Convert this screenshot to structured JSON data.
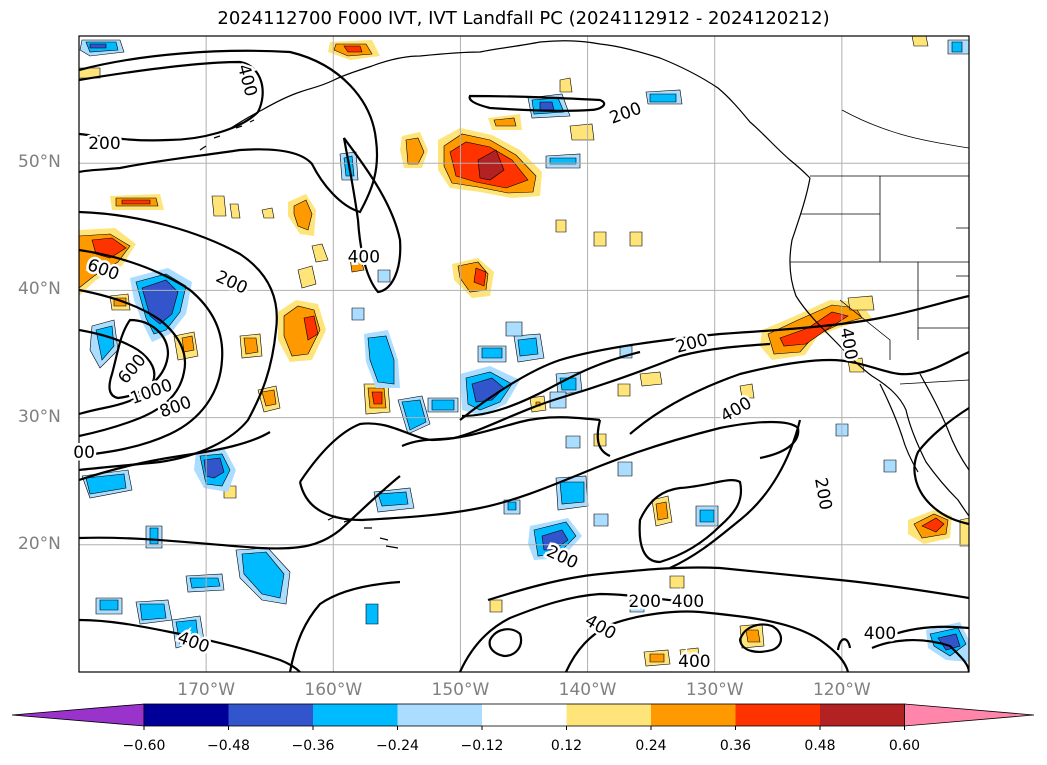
{
  "title": "2024112700 F000 IVT, IVT Landfall PC (2024112912 - 2024120212)",
  "map": {
    "lon_range": [
      -180,
      -110
    ],
    "lat_range": [
      10,
      60
    ],
    "lat_ticks": [
      {
        "value": 50,
        "label": "50°N"
      },
      {
        "value": 40,
        "label": "40°N"
      },
      {
        "value": 30,
        "label": "30°N"
      },
      {
        "value": 20,
        "label": "20°N"
      }
    ],
    "lon_ticks": [
      {
        "value": -170,
        "label": "170°W"
      },
      {
        "value": -160,
        "label": "160°W"
      },
      {
        "value": -150,
        "label": "150°W"
      },
      {
        "value": -140,
        "label": "140°W"
      },
      {
        "value": -130,
        "label": "130°W"
      },
      {
        "value": -120,
        "label": "120°W"
      }
    ],
    "grid": true,
    "contour_labels": [
      {
        "text": "400",
        "lon": -166.8,
        "lat": 56.5,
        "rot": 75
      },
      {
        "text": "200",
        "lon": -178.0,
        "lat": 51.5,
        "rot": 0
      },
      {
        "text": "200",
        "lon": -137.0,
        "lat": 53.9,
        "rot": -20
      },
      {
        "text": "400",
        "lon": -157.6,
        "lat": 42.6,
        "rot": 0
      },
      {
        "text": "600",
        "lon": -178.1,
        "lat": 41.6,
        "rot": 20
      },
      {
        "text": "200",
        "lon": -168.0,
        "lat": 40.6,
        "rot": 25
      },
      {
        "text": "600",
        "lon": -175.8,
        "lat": 33.8,
        "rot": -50
      },
      {
        "text": "1000",
        "lon": -174.3,
        "lat": 32.0,
        "rot": -20
      },
      {
        "text": "800",
        "lon": -172.4,
        "lat": 30.8,
        "rot": -20
      },
      {
        "text": "200",
        "lon": -131.8,
        "lat": 35.8,
        "rot": -15
      },
      {
        "text": "400",
        "lon": -128.3,
        "lat": 30.6,
        "rot": -30
      },
      {
        "text": "400",
        "lon": -119.5,
        "lat": 35.8,
        "rot": 80
      },
      {
        "text": "00",
        "lon": -179.6,
        "lat": 27.2,
        "rot": 0
      },
      {
        "text": "200",
        "lon": -121.5,
        "lat": 24.0,
        "rot": 80
      },
      {
        "text": "200",
        "lon": -142.0,
        "lat": 19.0,
        "rot": 25
      },
      {
        "text": "200",
        "lon": -135.5,
        "lat": 15.5,
        "rot": 0
      },
      {
        "text": "400",
        "lon": -132.1,
        "lat": 15.5,
        "rot": 0
      },
      {
        "text": "400",
        "lon": -139.0,
        "lat": 13.5,
        "rot": 30
      },
      {
        "text": "400",
        "lon": -171.0,
        "lat": 12.3,
        "rot": 20
      },
      {
        "text": "400",
        "lon": -117.0,
        "lat": 13.0,
        "rot": 0
      },
      {
        "text": "400",
        "lon": -131.6,
        "lat": 10.8,
        "rot": 0
      }
    ]
  },
  "colorbar": {
    "colors": [
      "#9933cc",
      "#000099",
      "#3355cc",
      "#00bbff",
      "#aaddff",
      "#ffffff",
      "#ffe47a",
      "#ff9900",
      "#ff3300",
      "#b22222",
      "#ff85aa"
    ],
    "ticks": [
      "−0.60",
      "−0.48",
      "−0.36",
      "−0.24",
      "−0.12",
      "0.12",
      "0.24",
      "0.36",
      "0.48",
      "0.60"
    ]
  }
}
